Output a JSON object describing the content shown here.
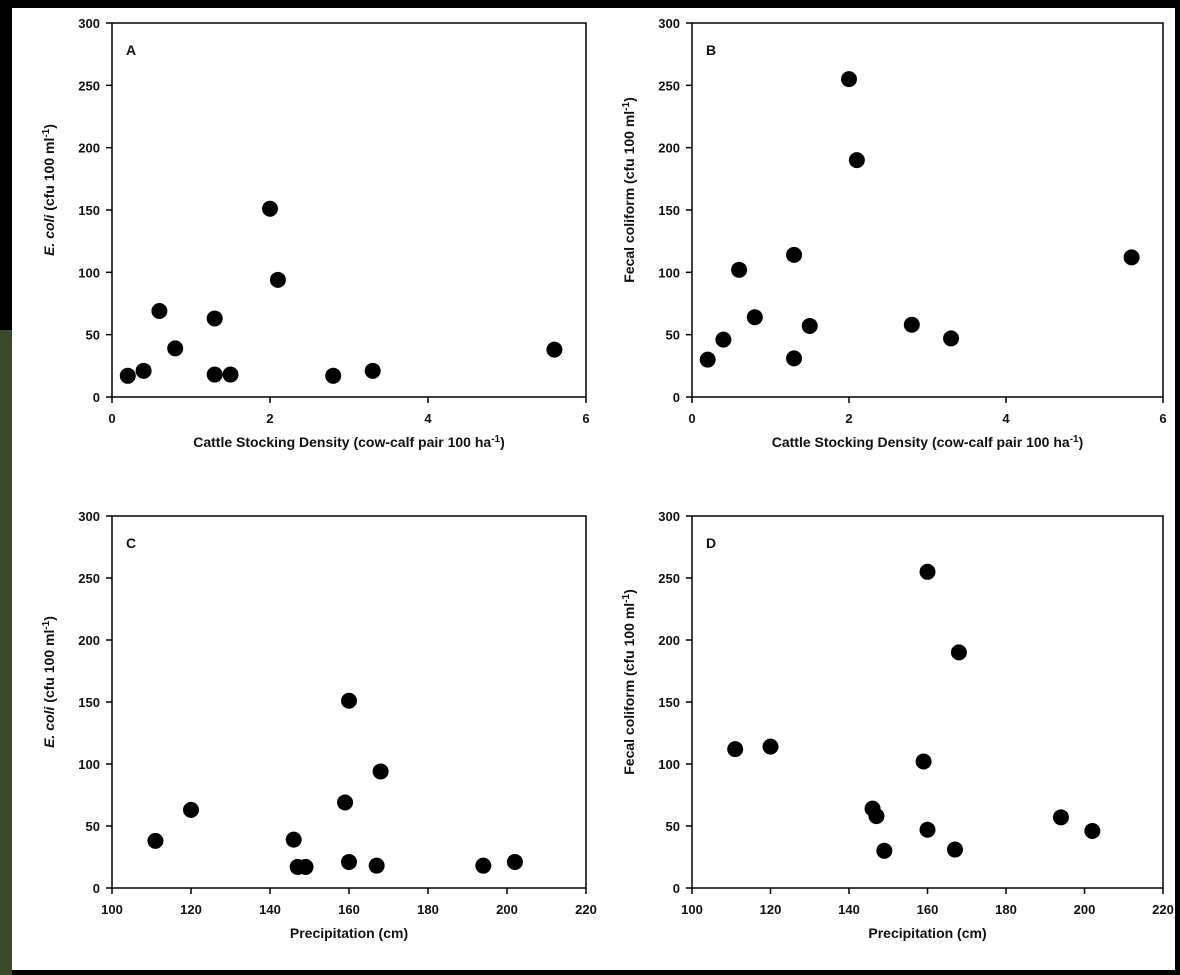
{
  "chart_data": [
    {
      "type": "scatter",
      "panel": "A",
      "xlabel": [
        {
          "text": "Cattle Stocking Density (cow-calf pair 100 ha"
        },
        {
          "text": "-1",
          "style": "sup"
        },
        {
          "text": ")"
        }
      ],
      "ylabel": [
        {
          "text": "E. coli",
          "style": "italic"
        },
        {
          "text": " (cfu 100 ml"
        },
        {
          "text": "-1",
          "style": "sup"
        },
        {
          "text": ")"
        }
      ],
      "x": [
        0.2,
        0.4,
        0.6,
        0.8,
        1.3,
        1.3,
        1.5,
        2.0,
        2.1,
        2.8,
        3.3,
        5.6
      ],
      "values": [
        17,
        21,
        69,
        39,
        63,
        18,
        18,
        151,
        94,
        17,
        21,
        38
      ],
      "color": "#000000",
      "xlim": [
        0,
        6
      ],
      "xticks": [
        0,
        2,
        4,
        6
      ],
      "ylim": [
        0,
        300
      ],
      "yticks": [
        0,
        50,
        100,
        150,
        200,
        250,
        300
      ]
    },
    {
      "type": "scatter",
      "panel": "B",
      "xlabel": [
        {
          "text": "Cattle Stocking Density (cow-calf pair 100 ha"
        },
        {
          "text": "-1",
          "style": "sup"
        },
        {
          "text": ")"
        }
      ],
      "ylabel": [
        {
          "text": "Fecal coliform (cfu 100 ml"
        },
        {
          "text": "-1",
          "style": "sup"
        },
        {
          "text": ")"
        }
      ],
      "x": [
        0.2,
        0.4,
        0.6,
        0.8,
        1.3,
        1.3,
        1.5,
        2.0,
        2.1,
        2.8,
        3.3,
        5.6
      ],
      "values": [
        30,
        46,
        102,
        64,
        114,
        31,
        57,
        255,
        190,
        58,
        47,
        112
      ],
      "color": "#000000",
      "xlim": [
        0,
        6
      ],
      "xticks": [
        0,
        2,
        4,
        6
      ],
      "ylim": [
        0,
        300
      ],
      "yticks": [
        0,
        50,
        100,
        150,
        200,
        250,
        300
      ]
    },
    {
      "type": "scatter",
      "panel": "C",
      "xlabel": [
        {
          "text": "Precipitation (cm)"
        }
      ],
      "ylabel": [
        {
          "text": "E. coli",
          "style": "italic"
        },
        {
          "text": " (cfu 100 ml"
        },
        {
          "text": "-1",
          "style": "sup"
        },
        {
          "text": ")"
        }
      ],
      "x": [
        111,
        120,
        146,
        147,
        149,
        159,
        160,
        160,
        167,
        168,
        194,
        202
      ],
      "values": [
        38,
        63,
        39,
        17,
        17,
        69,
        151,
        21,
        18,
        94,
        18,
        21
      ],
      "color": "#000000",
      "xlim": [
        100,
        220
      ],
      "xticks": [
        100,
        120,
        140,
        160,
        180,
        200,
        220
      ],
      "ylim": [
        0,
        300
      ],
      "yticks": [
        0,
        50,
        100,
        150,
        200,
        250,
        300
      ]
    },
    {
      "type": "scatter",
      "panel": "D",
      "xlabel": [
        {
          "text": "Precipitation (cm)"
        }
      ],
      "ylabel": [
        {
          "text": "Fecal coliform (cfu 100 ml"
        },
        {
          "text": "-1",
          "style": "sup"
        },
        {
          "text": ")"
        }
      ],
      "x": [
        111,
        120,
        146,
        147,
        149,
        159,
        160,
        160,
        167,
        168,
        194,
        202
      ],
      "values": [
        112,
        114,
        64,
        58,
        30,
        102,
        255,
        47,
        31,
        190,
        57,
        46
      ],
      "color": "#000000",
      "xlim": [
        100,
        220
      ],
      "xticks": [
        100,
        120,
        140,
        160,
        180,
        200,
        220
      ],
      "ylim": [
        0,
        300
      ],
      "yticks": [
        0,
        50,
        100,
        150,
        200,
        250,
        300
      ]
    }
  ]
}
